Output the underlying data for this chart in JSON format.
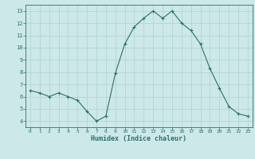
{
  "xlabel": "Humidex (Indice chaleur)",
  "x": [
    0,
    1,
    2,
    3,
    4,
    5,
    6,
    7,
    8,
    9,
    10,
    11,
    12,
    13,
    14,
    15,
    16,
    17,
    18,
    19,
    20,
    21,
    22,
    23
  ],
  "y": [
    6.5,
    6.3,
    6.0,
    6.3,
    6.0,
    5.7,
    4.8,
    4.0,
    4.4,
    7.9,
    10.3,
    11.7,
    12.4,
    13.0,
    12.4,
    13.0,
    12.0,
    11.4,
    10.3,
    8.3,
    6.7,
    5.2,
    4.6,
    4.4
  ],
  "line_color": "#2d6e6e",
  "marker": "+",
  "bg_color": "#cce8e8",
  "grid_color": "#b0d0d0",
  "tick_color": "#2d6e6e",
  "label_color": "#2d6e6e",
  "xlim": [
    -0.5,
    23.5
  ],
  "ylim": [
    3.5,
    13.5
  ],
  "yticks": [
    4,
    5,
    6,
    7,
    8,
    9,
    10,
    11,
    12,
    13
  ],
  "xticks": [
    0,
    1,
    2,
    3,
    4,
    5,
    6,
    7,
    8,
    9,
    10,
    11,
    12,
    13,
    14,
    15,
    16,
    17,
    18,
    19,
    20,
    21,
    22,
    23
  ]
}
